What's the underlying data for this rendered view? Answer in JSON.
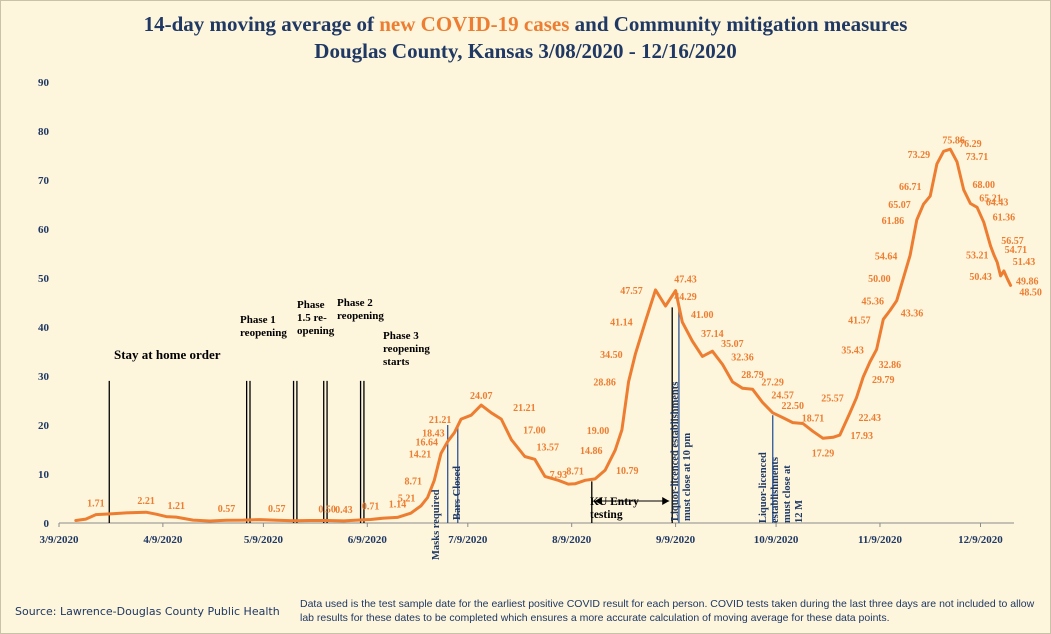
{
  "title": {
    "line1_a": "14-day moving average of ",
    "line1_b": "new COVID-19 cases",
    "line1_c": " and Community mitigation measures",
    "line2": "Douglas County, Kansas 3/08/2020 - 12/16/2020"
  },
  "source": "Source:  Lawrence-Douglas County Public Health",
  "note": "Data used is the test sample date for the earliest positive COVID result for each person.  COVID tests taken during the last three days are not included to allow lab results for these dates to be completed which ensures a more accurate calculation of moving average for these data points.",
  "colors": {
    "series": "#ed7d31",
    "axis_text": "#1f3864",
    "event_line": "#000000",
    "event_line_blue": "#2e5597"
  },
  "chart_data": {
    "type": "line",
    "title": "14-day moving average of new COVID-19 cases and Community mitigation measures",
    "subtitle": "Douglas County, Kansas 3/08/2020 - 12/16/2020",
    "xlabel": "",
    "ylabel": "",
    "ylim": [
      0,
      90
    ],
    "yticks": [
      0,
      10,
      20,
      30,
      40,
      50,
      60,
      70,
      80,
      90
    ],
    "xlim": [
      "2020-03-09",
      "2020-12-19"
    ],
    "xticks": [
      "3/9/2020",
      "4/9/2020",
      "5/9/2020",
      "6/9/2020",
      "7/9/2020",
      "8/9/2020",
      "9/9/2020",
      "10/9/2020",
      "11/9/2020",
      "12/9/2020"
    ],
    "xtick_dates": [
      "2020-03-09",
      "2020-04-09",
      "2020-05-09",
      "2020-06-09",
      "2020-07-09",
      "2020-08-09",
      "2020-09-09",
      "2020-10-09",
      "2020-11-09",
      "2020-12-09"
    ],
    "grid": false,
    "legend": "none",
    "series": [
      {
        "points": [
          [
            "2020-03-14",
            0.5
          ],
          [
            "2020-03-17",
            0.8
          ],
          [
            "2020-03-20",
            1.71
          ],
          [
            "2020-03-25",
            1.9
          ],
          [
            "2020-03-30",
            2.1
          ],
          [
            "2020-04-04",
            2.21
          ],
          [
            "2020-04-07",
            1.8
          ],
          [
            "2020-04-10",
            1.3
          ],
          [
            "2020-04-13",
            1.21
          ],
          [
            "2020-04-18",
            0.6
          ],
          [
            "2020-04-23",
            0.4
          ],
          [
            "2020-04-28",
            0.57
          ],
          [
            "2020-05-03",
            0.6
          ],
          [
            "2020-05-08",
            0.7
          ],
          [
            "2020-05-13",
            0.57
          ],
          [
            "2020-05-18",
            0.45
          ],
          [
            "2020-05-23",
            0.5
          ],
          [
            "2020-05-28",
            0.5
          ],
          [
            "2020-06-02",
            0.43
          ],
          [
            "2020-06-06",
            0.6
          ],
          [
            "2020-06-10",
            0.71
          ],
          [
            "2020-06-14",
            1.0
          ],
          [
            "2020-06-18",
            1.14
          ],
          [
            "2020-06-22",
            2.0
          ],
          [
            "2020-06-25",
            3.5
          ],
          [
            "2020-06-27",
            5.21
          ],
          [
            "2020-06-29",
            8.71
          ],
          [
            "2020-07-01",
            14.21
          ],
          [
            "2020-07-03",
            16.64
          ],
          [
            "2020-07-05",
            18.43
          ],
          [
            "2020-07-07",
            21.21
          ],
          [
            "2020-07-10",
            22.0
          ],
          [
            "2020-07-13",
            24.07
          ],
          [
            "2020-07-16",
            22.5
          ],
          [
            "2020-07-19",
            21.21
          ],
          [
            "2020-07-22",
            17.0
          ],
          [
            "2020-07-26",
            13.57
          ],
          [
            "2020-07-29",
            13.0
          ],
          [
            "2020-08-01",
            9.5
          ],
          [
            "2020-08-05",
            8.71
          ],
          [
            "2020-08-08",
            7.93
          ],
          [
            "2020-08-10",
            8.0
          ],
          [
            "2020-08-13",
            8.71
          ],
          [
            "2020-08-16",
            9.0
          ],
          [
            "2020-08-19",
            10.79
          ],
          [
            "2020-08-22",
            14.86
          ],
          [
            "2020-08-24",
            19.0
          ],
          [
            "2020-08-26",
            28.86
          ],
          [
            "2020-08-28",
            34.5
          ],
          [
            "2020-08-31",
            41.14
          ],
          [
            "2020-09-03",
            47.57
          ],
          [
            "2020-09-06",
            44.29
          ],
          [
            "2020-09-09",
            47.43
          ],
          [
            "2020-09-11",
            41.0
          ],
          [
            "2020-09-14",
            37.14
          ],
          [
            "2020-09-17",
            34.0
          ],
          [
            "2020-09-20",
            35.07
          ],
          [
            "2020-09-23",
            32.36
          ],
          [
            "2020-09-26",
            28.79
          ],
          [
            "2020-09-29",
            27.5
          ],
          [
            "2020-10-02",
            27.29
          ],
          [
            "2020-10-05",
            24.57
          ],
          [
            "2020-10-08",
            22.5
          ],
          [
            "2020-10-11",
            21.5
          ],
          [
            "2020-10-14",
            20.5
          ],
          [
            "2020-10-17",
            20.3
          ],
          [
            "2020-10-20",
            18.71
          ],
          [
            "2020-10-23",
            17.29
          ],
          [
            "2020-10-26",
            17.5
          ],
          [
            "2020-10-28",
            17.93
          ],
          [
            "2020-10-31",
            22.43
          ],
          [
            "2020-11-02",
            25.57
          ],
          [
            "2020-11-04",
            29.79
          ],
          [
            "2020-11-06",
            32.86
          ],
          [
            "2020-11-08",
            35.43
          ],
          [
            "2020-11-10",
            41.57
          ],
          [
            "2020-11-12",
            43.36
          ],
          [
            "2020-11-14",
            45.36
          ],
          [
            "2020-11-16",
            50.0
          ],
          [
            "2020-11-18",
            54.64
          ],
          [
            "2020-11-20",
            61.86
          ],
          [
            "2020-11-22",
            65.07
          ],
          [
            "2020-11-24",
            66.71
          ],
          [
            "2020-11-26",
            73.29
          ],
          [
            "2020-11-28",
            75.86
          ],
          [
            "2020-11-30",
            76.29
          ],
          [
            "2020-12-02",
            73.71
          ],
          [
            "2020-12-04",
            68.0
          ],
          [
            "2020-12-06",
            65.21
          ],
          [
            "2020-12-08",
            64.43
          ],
          [
            "2020-12-10",
            61.36
          ],
          [
            "2020-12-12",
            56.57
          ],
          [
            "2020-12-13",
            54.71
          ],
          [
            "2020-12-14",
            53.21
          ],
          [
            "2020-12-15",
            50.43
          ],
          [
            "2020-12-16",
            51.43
          ],
          [
            "2020-12-17",
            49.86
          ],
          [
            "2020-12-18",
            48.5
          ]
        ]
      }
    ],
    "data_labels": [
      {
        "text": "1.71",
        "date": "2020-03-20",
        "y": 1.71
      },
      {
        "text": "2.21",
        "date": "2020-04-04",
        "y": 2.21
      },
      {
        "text": "1.21",
        "date": "2020-04-13",
        "y": 1.21
      },
      {
        "text": "0.57",
        "date": "2020-04-28",
        "y": 0.57
      },
      {
        "text": "0.57",
        "date": "2020-05-13",
        "y": 0.57
      },
      {
        "text": "0.50",
        "date": "2020-05-28",
        "y": 0.5
      },
      {
        "text": "0.43",
        "date": "2020-06-02",
        "y": 0.43
      },
      {
        "text": "0.71",
        "date": "2020-06-10",
        "y": 0.71
      },
      {
        "text": "1.14",
        "date": "2020-06-18",
        "y": 1.14
      },
      {
        "text": "5.21",
        "date": "2020-06-27",
        "y": 5.21
      },
      {
        "text": "8.71",
        "date": "2020-06-29",
        "y": 8.71
      },
      {
        "text": "14.21",
        "date": "2020-07-01",
        "y": 14.21
      },
      {
        "text": "16.64",
        "date": "2020-07-03",
        "y": 16.64
      },
      {
        "text": "18.43",
        "date": "2020-07-05",
        "y": 18.43
      },
      {
        "text": "21.21",
        "date": "2020-07-07",
        "y": 21.21
      },
      {
        "text": "24.07",
        "date": "2020-07-13",
        "y": 24.07
      },
      {
        "text": "21.21",
        "date": "2020-07-19",
        "y": 21.21
      },
      {
        "text": "17.00",
        "date": "2020-07-22",
        "y": 17.0
      },
      {
        "text": "13.57",
        "date": "2020-07-26",
        "y": 13.57
      },
      {
        "text": "7.93",
        "date": "2020-08-08",
        "y": 7.93
      },
      {
        "text": "8.71",
        "date": "2020-08-13",
        "y": 8.71
      },
      {
        "text": "10.79",
        "date": "2020-08-19",
        "y": 10.79
      },
      {
        "text": "14.86",
        "date": "2020-08-22",
        "y": 14.86
      },
      {
        "text": "19.00",
        "date": "2020-08-24",
        "y": 19.0
      },
      {
        "text": "28.86",
        "date": "2020-08-26",
        "y": 28.86
      },
      {
        "text": "34.50",
        "date": "2020-08-28",
        "y": 34.5
      },
      {
        "text": "41.14",
        "date": "2020-08-31",
        "y": 41.14
      },
      {
        "text": "47.57",
        "date": "2020-09-03",
        "y": 47.57
      },
      {
        "text": "47.43",
        "date": "2020-09-09",
        "y": 47.43
      },
      {
        "text": "44.29",
        "date": "2020-09-06",
        "y": 44.29
      },
      {
        "text": "41.00",
        "date": "2020-09-11",
        "y": 41.0
      },
      {
        "text": "37.14",
        "date": "2020-09-14",
        "y": 37.14
      },
      {
        "text": "35.07",
        "date": "2020-09-20",
        "y": 35.07
      },
      {
        "text": "32.36",
        "date": "2020-09-23",
        "y": 32.36
      },
      {
        "text": "28.79",
        "date": "2020-09-26",
        "y": 28.79
      },
      {
        "text": "27.29",
        "date": "2020-10-02",
        "y": 27.29
      },
      {
        "text": "24.57",
        "date": "2020-10-05",
        "y": 24.57
      },
      {
        "text": "22.50",
        "date": "2020-10-08",
        "y": 22.5
      },
      {
        "text": "18.71",
        "date": "2020-10-20",
        "y": 18.71
      },
      {
        "text": "17.93",
        "date": "2020-10-28",
        "y": 17.93
      },
      {
        "text": "17.29",
        "date": "2020-10-23",
        "y": 17.29
      },
      {
        "text": "22.43",
        "date": "2020-10-31",
        "y": 22.43
      },
      {
        "text": "25.57",
        "date": "2020-11-02",
        "y": 25.57
      },
      {
        "text": "29.79",
        "date": "2020-11-04",
        "y": 29.79
      },
      {
        "text": "32.86",
        "date": "2020-11-06",
        "y": 32.86
      },
      {
        "text": "35.43",
        "date": "2020-11-08",
        "y": 35.43
      },
      {
        "text": "41.57",
        "date": "2020-11-10",
        "y": 41.57
      },
      {
        "text": "43.36",
        "date": "2020-11-12",
        "y": 43.36
      },
      {
        "text": "45.36",
        "date": "2020-11-14",
        "y": 45.36
      },
      {
        "text": "50.00",
        "date": "2020-11-16",
        "y": 50.0
      },
      {
        "text": "54.64",
        "date": "2020-11-18",
        "y": 54.64
      },
      {
        "text": "61.86",
        "date": "2020-11-20",
        "y": 61.86
      },
      {
        "text": "65.07",
        "date": "2020-11-22",
        "y": 65.07
      },
      {
        "text": "66.71",
        "date": "2020-11-24",
        "y": 66.71
      },
      {
        "text": "73.29",
        "date": "2020-11-26",
        "y": 73.29
      },
      {
        "text": "75.86",
        "date": "2020-11-28",
        "y": 75.86
      },
      {
        "text": "76.29",
        "date": "2020-11-30",
        "y": 76.29
      },
      {
        "text": "73.71",
        "date": "2020-12-02",
        "y": 73.71
      },
      {
        "text": "68.00",
        "date": "2020-12-04",
        "y": 68.0
      },
      {
        "text": "65.21",
        "date": "2020-12-06",
        "y": 65.21
      },
      {
        "text": "64.43",
        "date": "2020-12-08",
        "y": 64.43
      },
      {
        "text": "61.36",
        "date": "2020-12-10",
        "y": 61.36
      },
      {
        "text": "56.57",
        "date": "2020-12-12",
        "y": 56.57
      },
      {
        "text": "54.71",
        "date": "2020-12-13",
        "y": 54.71
      },
      {
        "text": "53.21",
        "date": "2020-12-14",
        "y": 53.21
      },
      {
        "text": "51.43",
        "date": "2020-12-16",
        "y": 51.43
      },
      {
        "text": "50.43",
        "date": "2020-12-15",
        "y": 50.43
      },
      {
        "text": "49.86",
        "date": "2020-12-17",
        "y": 49.86
      },
      {
        "text": "48.50",
        "date": "2020-12-18",
        "y": 48.5
      }
    ],
    "events": [
      {
        "date": "2020-03-24",
        "y": 29,
        "color": "black",
        "label": "Stay at home order"
      },
      {
        "date": "2020-05-04",
        "y": 29,
        "color": "black",
        "label": "Phase 1 reopening"
      },
      {
        "date": "2020-05-05",
        "y": 29,
        "color": "black",
        "label": ""
      },
      {
        "date": "2020-05-18",
        "y": 29,
        "color": "black",
        "label": "Phase 1.5 re-opening"
      },
      {
        "date": "2020-05-19",
        "y": 29,
        "color": "black",
        "label": ""
      },
      {
        "date": "2020-05-27",
        "y": 29,
        "color": "black",
        "label": "Phase 2 reopening"
      },
      {
        "date": "2020-05-28",
        "y": 29,
        "color": "black",
        "label": ""
      },
      {
        "date": "2020-06-07",
        "y": 29,
        "color": "black",
        "label": "Phase 3 reopening starts"
      },
      {
        "date": "2020-06-08",
        "y": 29,
        "color": "black",
        "label": ""
      },
      {
        "date": "2020-07-03",
        "y": 20,
        "color": "blue",
        "label": "Masks required"
      },
      {
        "date": "2020-07-06",
        "y": 20,
        "color": "blue",
        "label": "Bars Closed"
      },
      {
        "date": "2020-08-15",
        "y": 8.5,
        "color": "black",
        "label": ""
      },
      {
        "date": "2020-09-08",
        "y": 44,
        "color": "black",
        "label": ""
      },
      {
        "date": "2020-09-10",
        "y": 44,
        "color": "blue",
        "label": "Liquor-licenced establishments must close at 10 pm"
      },
      {
        "date": "2020-10-08",
        "y": 22,
        "color": "blue",
        "label": "Liquor-licenced establishments must close at 12 M"
      }
    ],
    "annotations": [
      "Stay at home order",
      "Phase 1 reopening",
      "Phase 1.5 re-opening",
      "Phase 2 reopening",
      "Phase 3 reopening starts",
      "Masks required",
      "Bars Closed",
      "KU  Entry testing",
      "Liquor-licenced establishments must close at 10 pm",
      "Liquor-licenced establishments must close at 12 M"
    ],
    "span": {
      "start": "2020-08-15",
      "end": "2020-09-08",
      "y": 4.5,
      "label": "KU  Entry testing"
    }
  }
}
